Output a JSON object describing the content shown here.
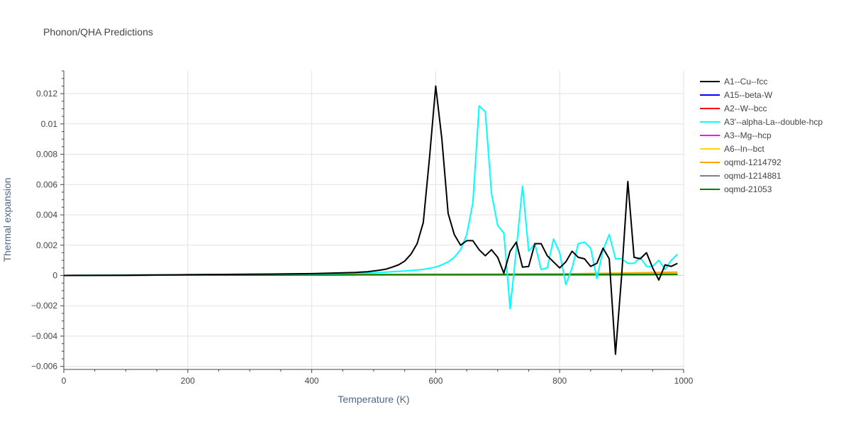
{
  "chart_data": {
    "type": "line",
    "title": "Phonon/QHA Predictions",
    "xlabel": "Temperature (K)",
    "ylabel": "Thermal expansion",
    "xlim": [
      0,
      1000
    ],
    "ylim": [
      -0.0062,
      0.0135
    ],
    "x_ticks": [
      0,
      200,
      400,
      600,
      800,
      1000
    ],
    "y_ticks": [
      -0.006,
      -0.004,
      -0.002,
      0,
      0.002,
      0.004,
      0.006,
      0.008,
      0.01,
      0.012
    ],
    "x_tick_labels": [
      "0",
      "200",
      "400",
      "600",
      "800",
      "1000"
    ],
    "y_tick_labels": [
      "−0.006",
      "−0.004",
      "−0.002",
      "0",
      "0.002",
      "0.004",
      "0.006",
      "0.008",
      "0.01",
      "0.012"
    ],
    "grid": true,
    "legend_position": "right",
    "series": [
      {
        "name": "A1--Cu--fcc",
        "color": "#000000",
        "x": [
          0,
          100,
          200,
          300,
          400,
          450,
          470,
          490,
          500,
          510,
          520,
          530,
          540,
          550,
          560,
          570,
          580,
          590,
          600,
          610,
          620,
          630,
          640,
          650,
          660,
          670,
          680,
          690,
          700,
          710,
          720,
          730,
          740,
          750,
          760,
          770,
          780,
          790,
          800,
          810,
          820,
          830,
          840,
          850,
          860,
          870,
          880,
          890,
          900,
          910,
          920,
          930,
          940,
          950,
          960,
          970,
          980,
          990
        ],
        "y": [
          0,
          2e-05,
          5e-05,
          8e-05,
          0.00012,
          0.00018,
          0.0002,
          0.00025,
          0.0003,
          0.00035,
          0.00042,
          0.00055,
          0.0007,
          0.00095,
          0.0014,
          0.0021,
          0.0035,
          0.0078,
          0.0125,
          0.009,
          0.0041,
          0.0027,
          0.002,
          0.0023,
          0.0023,
          0.0017,
          0.0013,
          0.0017,
          0.0012,
          0.00015,
          0.0016,
          0.0022,
          0.00055,
          0.0006,
          0.0021,
          0.0021,
          0.0013,
          0.0009,
          0.0005,
          0.0009,
          0.0016,
          0.0012,
          0.0011,
          0.0006,
          0.0008,
          0.0018,
          0.0011,
          -0.0052,
          0.0,
          0.0062,
          0.0012,
          0.0011,
          0.0015,
          0.0005,
          -0.0003,
          0.0007,
          0.0006,
          0.0008
        ]
      },
      {
        "name": "A15--beta-W",
        "color": "#0000ff",
        "x": [
          0,
          200,
          400,
          600,
          800,
          990
        ],
        "y": [
          0,
          3e-05,
          4e-05,
          5e-05,
          6e-05,
          7e-05
        ]
      },
      {
        "name": "A2--W--bcc",
        "color": "#ff0000",
        "x": [
          0,
          200,
          400,
          600,
          800,
          990
        ],
        "y": [
          0,
          3e-05,
          4e-05,
          5e-05,
          6e-05,
          7e-05
        ]
      },
      {
        "name": "A3'--alpha-La--double-hcp",
        "color": "#00ffff",
        "x": [
          0,
          100,
          200,
          300,
          400,
          500,
          550,
          580,
          600,
          610,
          620,
          630,
          640,
          650,
          660,
          670,
          680,
          690,
          700,
          710,
          720,
          730,
          740,
          750,
          760,
          770,
          780,
          790,
          800,
          810,
          820,
          830,
          840,
          850,
          860,
          870,
          880,
          890,
          900,
          910,
          920,
          930,
          940,
          950,
          960,
          970,
          980,
          990
        ],
        "y": [
          0,
          3e-05,
          5e-05,
          8e-05,
          0.0001,
          0.00018,
          0.0003,
          0.0004,
          0.00055,
          0.0007,
          0.0009,
          0.0012,
          0.0017,
          0.0027,
          0.0048,
          0.0112,
          0.0108,
          0.0054,
          0.0033,
          0.0028,
          -0.0022,
          0.0017,
          0.0059,
          0.0016,
          0.0021,
          0.0004,
          0.0005,
          0.0024,
          0.0015,
          -0.0006,
          0.0005,
          0.0021,
          0.0022,
          0.0018,
          -0.0002,
          0.0017,
          0.0027,
          0.0011,
          0.0011,
          0.0008,
          0.0008,
          0.0012,
          0.0006,
          0.0006,
          0.001,
          0.0004,
          0.001,
          0.0014
        ]
      },
      {
        "name": "A3--Mg--hcp",
        "color": "#ff00ff",
        "x": [
          0,
          200,
          400,
          600,
          800,
          990
        ],
        "y": [
          0,
          4e-05,
          5e-05,
          6e-05,
          7e-05,
          9e-05
        ]
      },
      {
        "name": "A6--In--bct",
        "color": "#ffd700",
        "x": [
          0,
          200,
          400,
          600,
          800,
          900,
          990
        ],
        "y": [
          0,
          4e-05,
          6e-05,
          8e-05,
          0.0001,
          0.00015,
          0.0002
        ]
      },
      {
        "name": "oqmd-1214792",
        "color": "#ffa500",
        "x": [
          0,
          200,
          400,
          600,
          800,
          900,
          990
        ],
        "y": [
          0,
          4e-05,
          6e-05,
          8e-05,
          0.00011,
          0.00016,
          0.00022
        ]
      },
      {
        "name": "oqmd-1214881",
        "color": "#808080",
        "x": [
          0,
          200,
          400,
          600,
          800,
          990
        ],
        "y": [
          0,
          3e-05,
          4e-05,
          5e-05,
          6e-05,
          7e-05
        ]
      },
      {
        "name": "oqmd-21053",
        "color": "#008000",
        "x": [
          0,
          200,
          400,
          600,
          800,
          990
        ],
        "y": [
          0,
          3e-05,
          4e-05,
          5e-05,
          6e-05,
          7e-05
        ]
      }
    ]
  }
}
